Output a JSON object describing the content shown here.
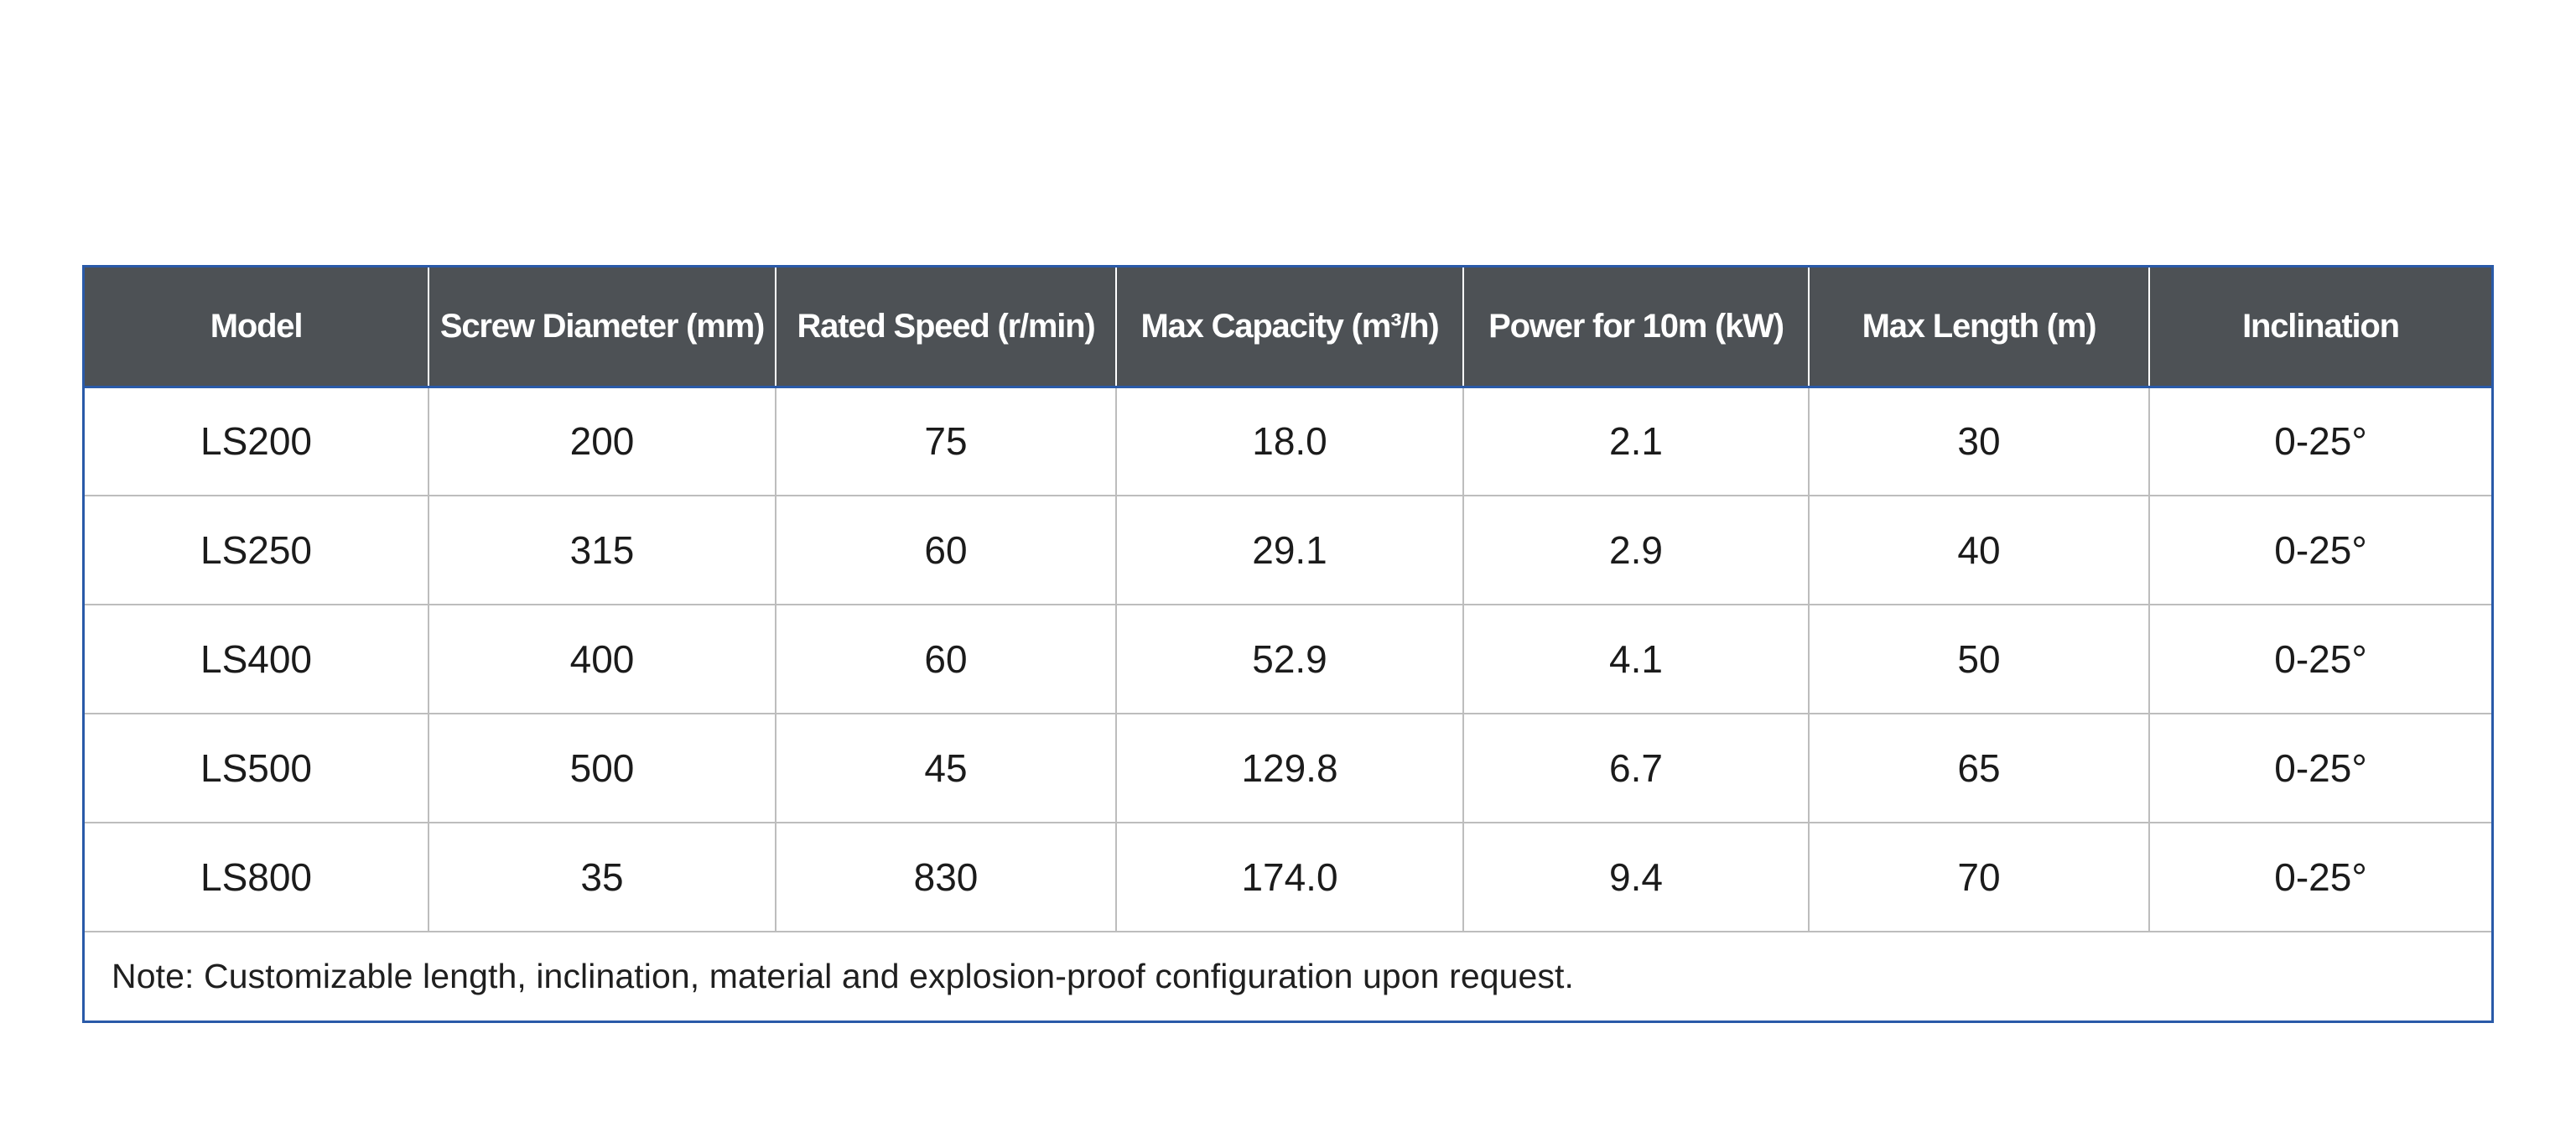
{
  "table": {
    "headers": [
      "Model",
      "Screw Diameter (mm)",
      "Rated Speed (r/min)",
      "Max Capacity (m³/h)",
      "Power for 10m (kW)",
      "Max Length (m)",
      "Inclination"
    ],
    "rows": [
      [
        "LS200",
        "200",
        "75",
        "18.0",
        "2.1",
        "30",
        "0-25°"
      ],
      [
        "LS250",
        "315",
        "60",
        "29.1",
        "2.9",
        "40",
        "0-25°"
      ],
      [
        "LS400",
        "400",
        "60",
        "52.9",
        "4.1",
        "50",
        "0-25°"
      ],
      [
        "LS500",
        "500",
        "45",
        "129.8",
        "6.7",
        "65",
        "0-25°"
      ],
      [
        "LS800",
        "35",
        "830",
        "174.0",
        "9.4",
        "70",
        "0-25°"
      ]
    ],
    "note": "Note:  Customizable length, inclination, material and explosion-proof configuration upon request."
  },
  "colors": {
    "header_bg": "#4d5155",
    "header_text": "#ffffff",
    "outer_border": "#2a5aa8",
    "grid_line": "#bdbdbd"
  }
}
